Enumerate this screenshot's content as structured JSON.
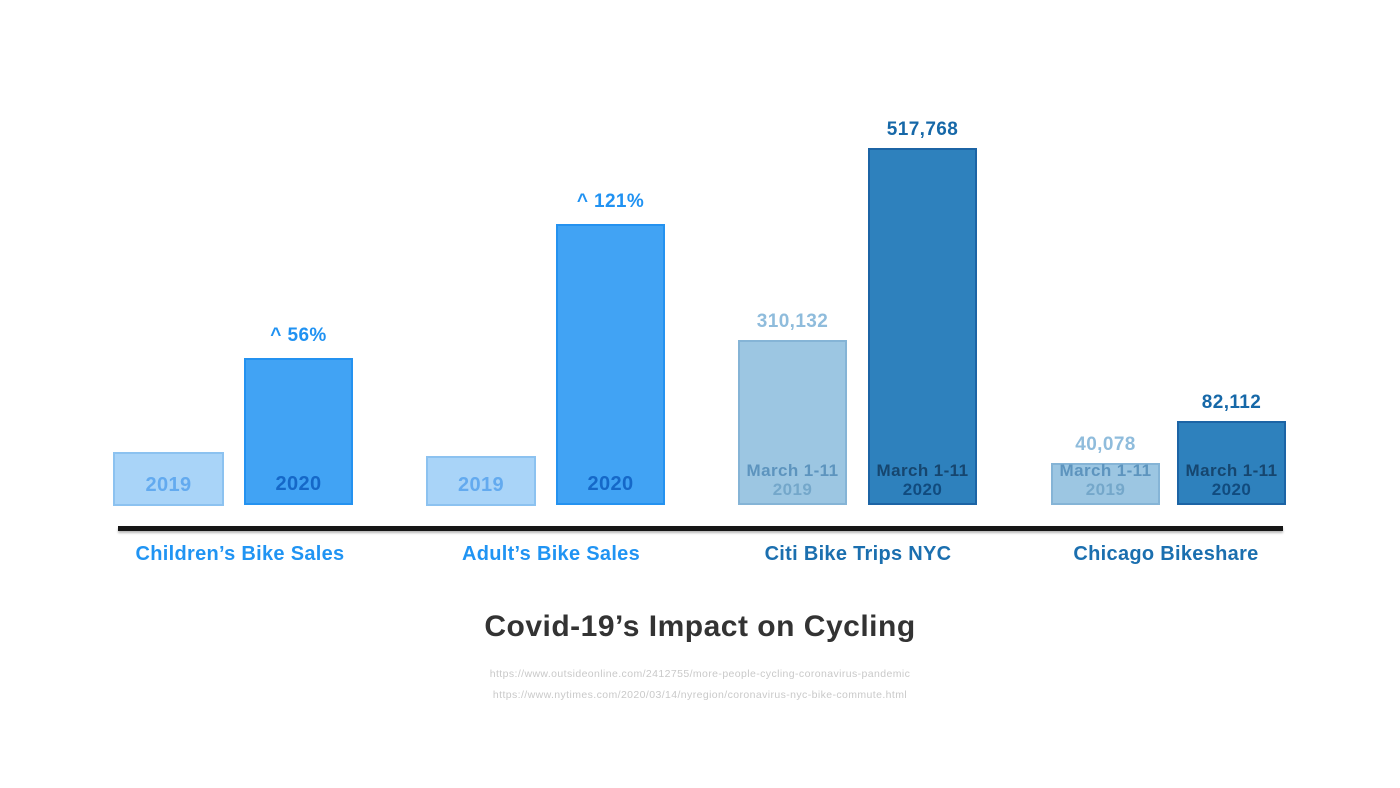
{
  "chart_data": {
    "type": "bar",
    "title": "Covid-19’s Impact on Cycling",
    "legend": "none",
    "grid": false,
    "value_axis_visible": false,
    "groups": [
      {
        "category": "Children’s Bike Sales",
        "palette": "bright-blue",
        "bars": [
          {
            "period": "2019",
            "label_lines": [
              "2019"
            ],
            "value": null,
            "value_label": ""
          },
          {
            "period": "2020",
            "label_lines": [
              "2020"
            ],
            "value": null,
            "value_label": "^ 56%"
          }
        ],
        "change_label": "^ 56%"
      },
      {
        "category": "Adult’s Bike Sales",
        "palette": "bright-blue",
        "bars": [
          {
            "period": "2019",
            "label_lines": [
              "2019"
            ],
            "value": null,
            "value_label": ""
          },
          {
            "period": "2020",
            "label_lines": [
              "2020"
            ],
            "value": null,
            "value_label": "^ 121%"
          }
        ],
        "change_label": "^ 121%"
      },
      {
        "category": "Citi Bike Trips NYC",
        "palette": "steel-blue",
        "bars": [
          {
            "period": "March 1-11 2019",
            "label_lines": [
              "March 1-11",
              "2019"
            ],
            "value": 310132,
            "value_label": "310,132"
          },
          {
            "period": "March 1-11 2020",
            "label_lines": [
              "March 1-11",
              "2020"
            ],
            "value": 517768,
            "value_label": "517,768"
          }
        ]
      },
      {
        "category": "Chicago Bikeshare",
        "palette": "steel-blue",
        "bars": [
          {
            "period": "March 1-11 2019",
            "label_lines": [
              "March 1-11",
              "2019"
            ],
            "value": 40078,
            "value_label": "40,078"
          },
          {
            "period": "March 1-11 2020",
            "label_lines": [
              "March 1-11",
              "2020"
            ],
            "value": 82112,
            "value_label": "82,112"
          }
        ]
      }
    ],
    "sources": [
      "https://www.outsideonline.com/2412755/more-people-cycling-coronavirus-pandemic",
      "https://www.nytimes.com/2020/03/14/nyregion/coronavirus-nyc-bike-commute.html"
    ]
  },
  "colors": {
    "light_blue_fill": "#A9D4F8",
    "bright_blue_fill": "#41A3F4",
    "muted_light_blue_fill": "#9CC6E2",
    "steel_blue_fill": "#2E81BD",
    "bright_category_text": "#2094F3",
    "steel_category_text": "#1B6FAF",
    "pct_label_text": "#2092F2",
    "title_text": "#333333",
    "source_text": "#C9C9C9",
    "axis": "#161616"
  }
}
